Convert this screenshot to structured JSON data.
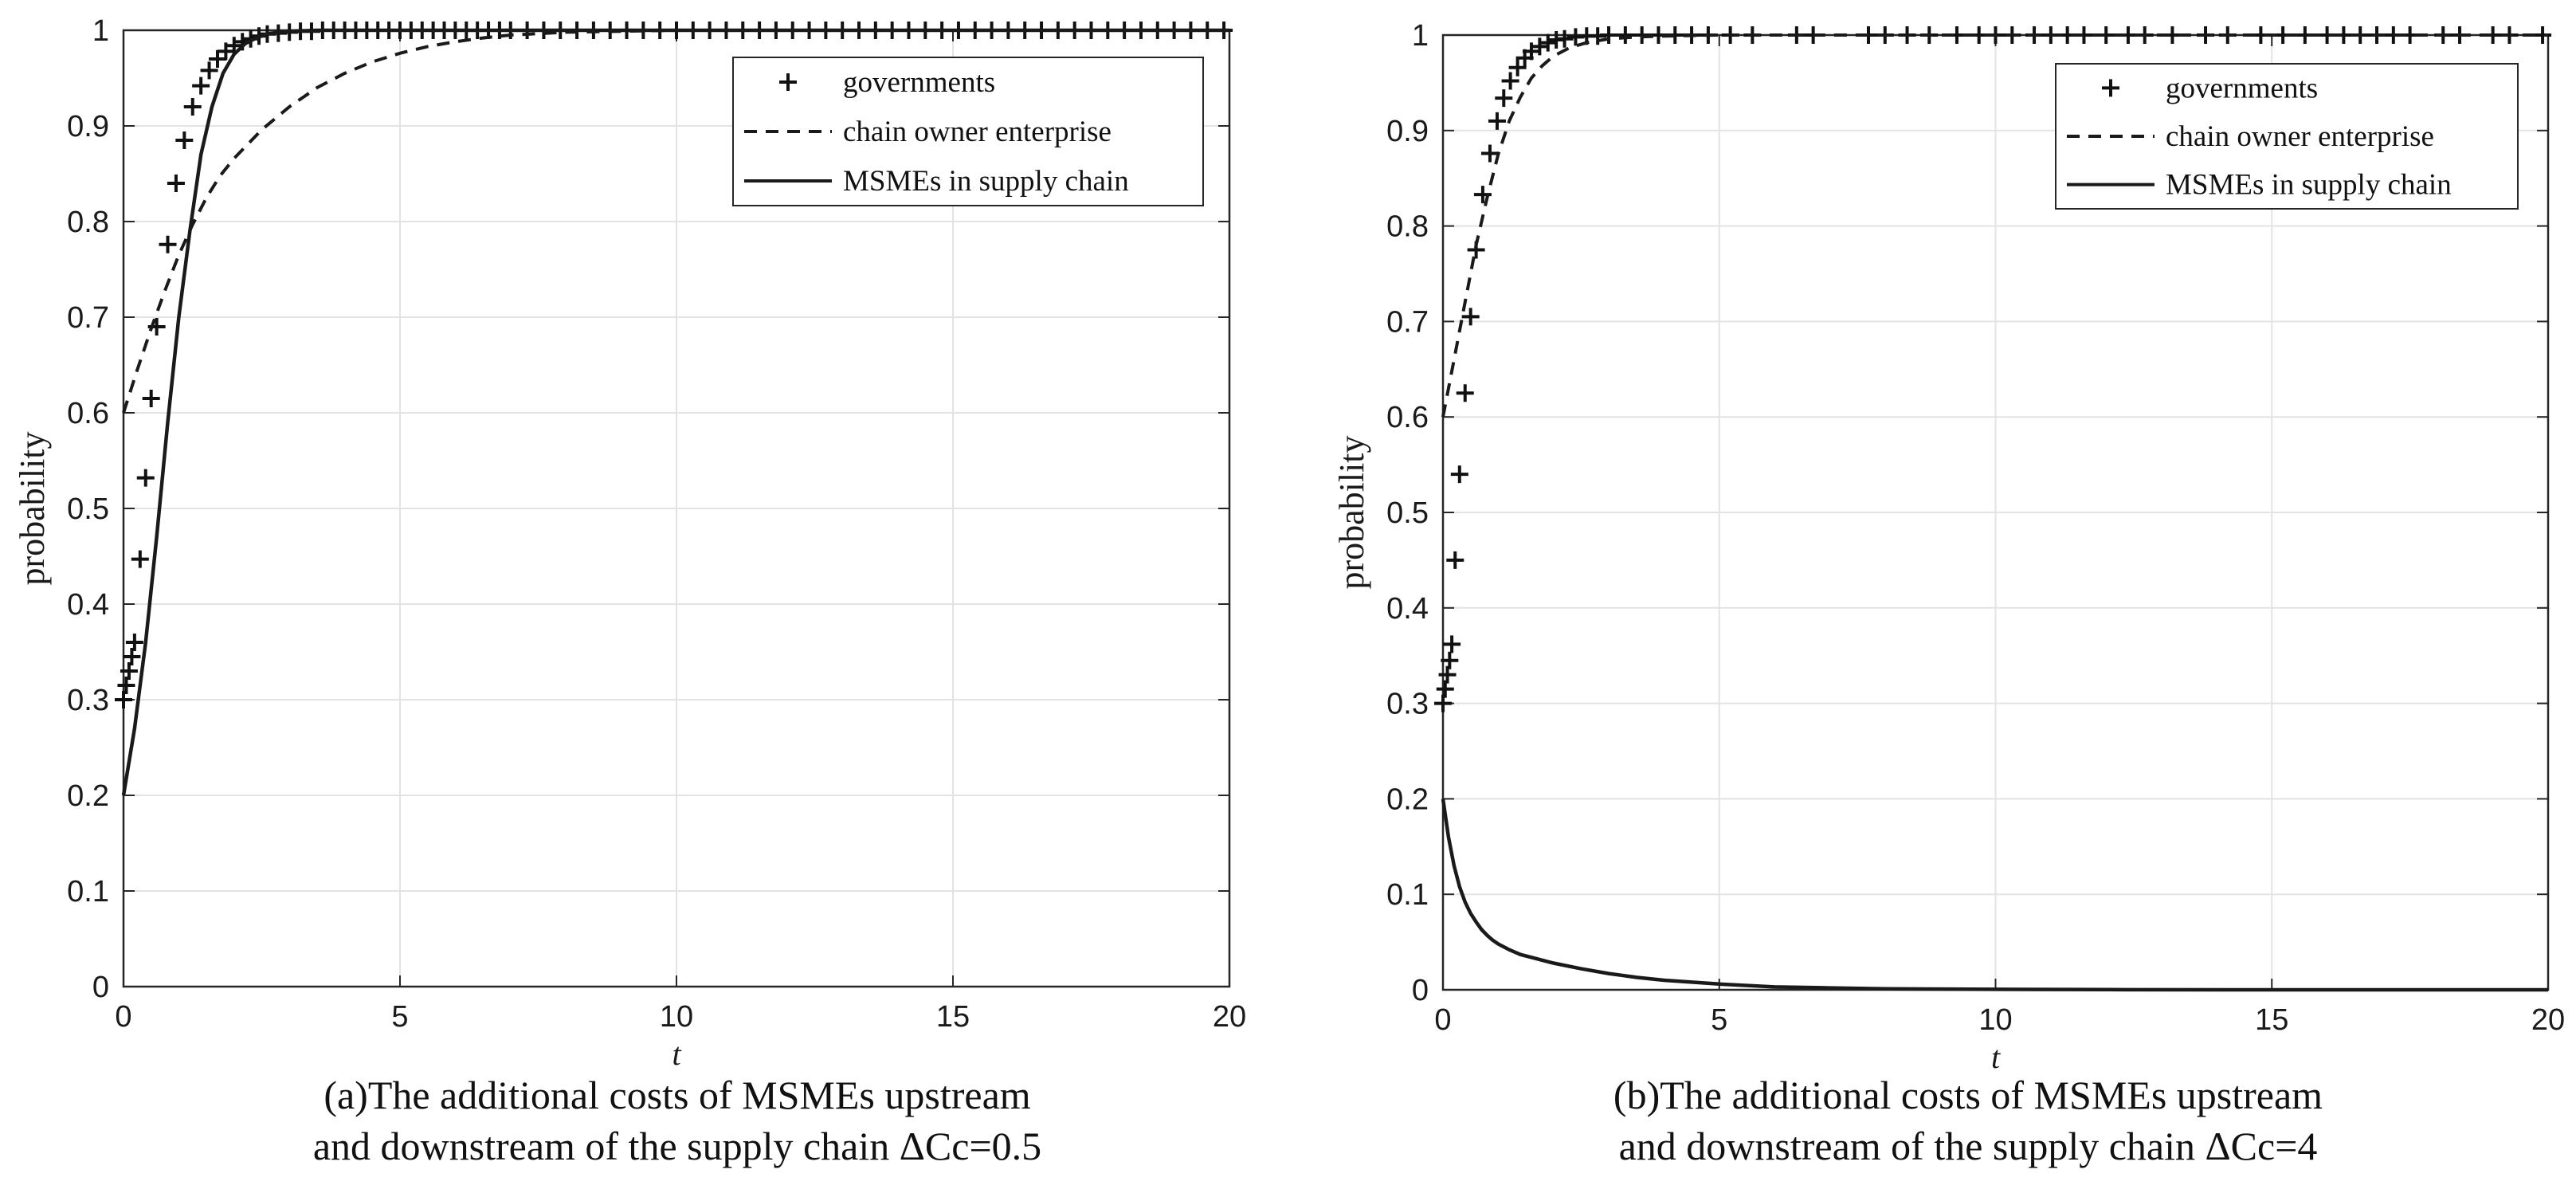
{
  "chart_data": [
    {
      "type": "line",
      "id": "a",
      "caption": [
        "(a)The additional costs of MSMEs upstream",
        "and downstream of the supply chain ΔCc=0.5"
      ],
      "xlabel": "t",
      "ylabel": "probability",
      "xlim": [
        0,
        20
      ],
      "ylim": [
        0,
        1
      ],
      "xticks": [
        0,
        5,
        10,
        15,
        20
      ],
      "yticks": [
        0,
        0.1,
        0.2,
        0.3,
        0.4,
        0.5,
        0.6,
        0.7,
        0.8,
        0.9,
        1
      ],
      "grid": true,
      "legend_position": "top-right",
      "series": [
        {
          "name": "governments",
          "style": "plus-markers",
          "x": [
            0.0,
            0.05,
            0.1,
            0.15,
            0.2,
            0.3,
            0.4,
            0.5,
            0.6,
            0.8,
            0.95,
            1.1,
            1.25,
            1.4,
            1.55,
            1.7,
            1.85,
            2.0,
            2.15,
            2.3,
            2.45,
            2.6,
            2.8,
            3.0,
            3.2,
            3.4,
            3.6,
            3.8,
            4.0,
            4.2,
            4.4,
            4.6,
            4.8,
            5.0,
            5.2,
            5.4,
            5.6,
            5.8,
            6.0,
            6.2,
            6.4,
            6.6,
            6.8,
            7.0,
            7.3,
            7.6,
            7.9,
            8.2,
            8.5,
            8.8,
            9.1,
            9.4,
            9.7,
            10.0,
            10.3,
            10.6,
            10.9,
            11.2,
            11.5,
            11.8,
            12.1,
            12.4,
            12.7,
            13.0,
            13.3,
            13.6,
            13.9,
            14.2,
            14.5,
            14.8,
            15.1,
            15.4,
            15.7,
            16.0,
            16.3,
            16.6,
            16.9,
            17.2,
            17.5,
            17.8,
            18.1,
            18.4,
            18.7,
            19.0,
            19.3,
            19.6,
            19.9
          ],
          "y": [
            0.3,
            0.315,
            0.33,
            0.345,
            0.36,
            0.447,
            0.532,
            0.615,
            0.69,
            0.776,
            0.84,
            0.885,
            0.92,
            0.942,
            0.958,
            0.97,
            0.978,
            0.984,
            0.988,
            0.991,
            0.994,
            0.996,
            0.997,
            0.998,
            0.999,
            0.999,
            1.0,
            1.0,
            1.0,
            1.0,
            1.0,
            1.0,
            1.0,
            1.0,
            1.0,
            1.0,
            1.0,
            1.0,
            1.0,
            1.0,
            1.0,
            1.0,
            1.0,
            1.0,
            1.0,
            1.0,
            1.0,
            1.0,
            1.0,
            1.0,
            1.0,
            1.0,
            1.0,
            1.0,
            1.0,
            1.0,
            1.0,
            1.0,
            1.0,
            1.0,
            1.0,
            1.0,
            1.0,
            1.0,
            1.0,
            1.0,
            1.0,
            1.0,
            1.0,
            1.0,
            1.0,
            1.0,
            1.0,
            1.0,
            1.0,
            1.0,
            1.0,
            1.0,
            1.0,
            1.0,
            1.0,
            1.0,
            1.0,
            1.0,
            1.0,
            1.0,
            1.0
          ]
        },
        {
          "name": "chain owner enterprise",
          "style": "dashed",
          "x": [
            0,
            0.25,
            0.5,
            0.75,
            1,
            1.25,
            1.5,
            1.75,
            2,
            2.5,
            3,
            3.5,
            4,
            4.5,
            5,
            5.5,
            6,
            6.5,
            7,
            8,
            9,
            10,
            12,
            14,
            16,
            18,
            20
          ],
          "y": [
            0.6,
            0.645,
            0.688,
            0.728,
            0.765,
            0.797,
            0.825,
            0.848,
            0.866,
            0.896,
            0.92,
            0.94,
            0.955,
            0.967,
            0.976,
            0.983,
            0.988,
            0.992,
            0.995,
            0.998,
            0.999,
            1.0,
            1.0,
            1.0,
            1.0,
            1.0,
            1.0
          ]
        },
        {
          "name": "MSMEs  in supply chain",
          "style": "solid",
          "x": [
            0,
            0.2,
            0.4,
            0.6,
            0.8,
            1.0,
            1.2,
            1.4,
            1.6,
            1.8,
            2.0,
            2.2,
            2.4,
            2.6,
            2.8,
            3.0,
            3.5,
            4,
            5,
            6,
            8,
            10,
            12,
            15,
            20
          ],
          "y": [
            0.2,
            0.27,
            0.36,
            0.47,
            0.59,
            0.7,
            0.79,
            0.87,
            0.92,
            0.955,
            0.975,
            0.986,
            0.992,
            0.996,
            0.998,
            0.999,
            1.0,
            1.0,
            1.0,
            1.0,
            1.0,
            1.0,
            1.0,
            1.0,
            1.0
          ]
        }
      ]
    },
    {
      "type": "line",
      "id": "b",
      "caption": [
        "(b)The additional costs of MSMEs upstream",
        "and downstream of the supply chain ΔCc=4"
      ],
      "xlabel": "t",
      "ylabel": "probability",
      "xlim": [
        0,
        20
      ],
      "ylim": [
        0,
        1
      ],
      "xticks": [
        0,
        5,
        10,
        15,
        20
      ],
      "yticks": [
        0,
        0.1,
        0.2,
        0.3,
        0.4,
        0.5,
        0.6,
        0.7,
        0.8,
        0.9,
        1
      ],
      "grid": true,
      "legend_position": "top-right",
      "series": [
        {
          "name": "governments",
          "style": "plus-markers",
          "x": [
            0.0,
            0.04,
            0.08,
            0.12,
            0.16,
            0.22,
            0.3,
            0.4,
            0.5,
            0.6,
            0.72,
            0.85,
            0.98,
            1.1,
            1.22,
            1.35,
            1.48,
            1.6,
            1.75,
            1.9,
            2.05,
            2.2,
            2.4,
            2.6,
            2.8,
            3.0,
            3.3,
            3.6,
            3.9,
            4.2,
            4.5,
            4.8,
            5.2,
            5.6,
            6.4,
            6.7,
            7.7,
            8.0,
            8.4,
            8.8,
            9.3,
            9.7,
            10.0,
            10.3,
            10.7,
            11.0,
            11.3,
            11.6,
            12.0,
            12.4,
            12.7,
            13.2,
            13.8,
            14.2,
            14.8,
            15.2,
            15.6,
            16.0,
            16.3,
            16.6,
            16.9,
            17.2,
            17.5,
            18.1,
            18.4,
            19.0,
            19.3,
            19.9
          ],
          "y": [
            0.3,
            0.315,
            0.33,
            0.345,
            0.362,
            0.45,
            0.54,
            0.625,
            0.705,
            0.775,
            0.833,
            0.876,
            0.91,
            0.934,
            0.952,
            0.966,
            0.976,
            0.983,
            0.988,
            0.992,
            0.995,
            0.996,
            0.998,
            0.999,
            0.999,
            1.0,
            1.0,
            1.0,
            1.0,
            1.0,
            1.0,
            1.0,
            1.0,
            1.0,
            1.0,
            1.0,
            1.0,
            1.0,
            1.0,
            1.0,
            1.0,
            1.0,
            1.0,
            1.0,
            1.0,
            1.0,
            1.0,
            1.0,
            1.0,
            1.0,
            1.0,
            1.0,
            1.0,
            1.0,
            1.0,
            1.0,
            1.0,
            1.0,
            1.0,
            1.0,
            1.0,
            1.0,
            1.0,
            1.0,
            1.0,
            1.0,
            1.0,
            1.0
          ]
        },
        {
          "name": "chain owner enterprise",
          "style": "dashed",
          "x": [
            0,
            0.2,
            0.4,
            0.6,
            0.8,
            1.0,
            1.2,
            1.4,
            1.6,
            1.8,
            2.0,
            2.3,
            2.6,
            3.0,
            3.5,
            4,
            5,
            6,
            8,
            10,
            12,
            15,
            20
          ],
          "y": [
            0.6,
            0.66,
            0.72,
            0.78,
            0.83,
            0.875,
            0.91,
            0.935,
            0.955,
            0.968,
            0.978,
            0.987,
            0.992,
            0.996,
            0.998,
            0.999,
            1.0,
            1.0,
            1.0,
            1.0,
            1.0,
            1.0,
            1.0
          ]
        },
        {
          "name": "MSMEs  in supply chain",
          "style": "solid",
          "x": [
            0,
            0.1,
            0.2,
            0.3,
            0.4,
            0.5,
            0.6,
            0.7,
            0.8,
            0.9,
            1.0,
            1.2,
            1.4,
            1.6,
            1.8,
            2.0,
            2.5,
            3.0,
            3.5,
            4.0,
            5.0,
            6.0,
            7.0,
            8.0,
            10.0,
            12.0,
            15.0,
            20.0
          ],
          "y": [
            0.2,
            0.16,
            0.13,
            0.108,
            0.092,
            0.08,
            0.071,
            0.063,
            0.057,
            0.052,
            0.048,
            0.042,
            0.037,
            0.034,
            0.031,
            0.028,
            0.022,
            0.017,
            0.013,
            0.01,
            0.006,
            0.003,
            0.002,
            0.001,
            0.0005,
            0.0002,
            0.0,
            0.0
          ]
        }
      ]
    }
  ]
}
